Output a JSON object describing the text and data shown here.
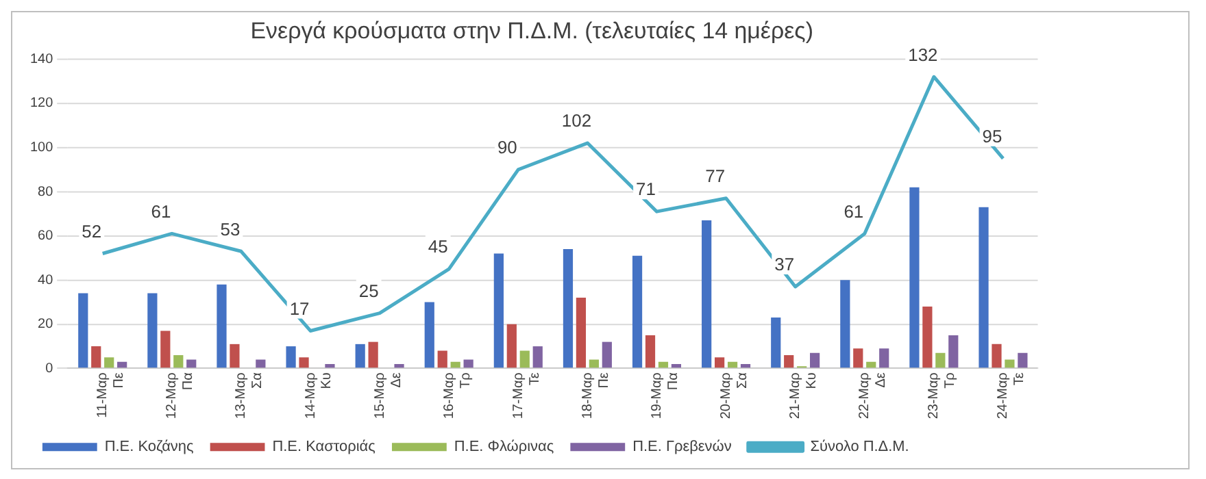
{
  "chart_data": {
    "type": "bar",
    "title": "Ενεργά κρούσματα στην Π.Δ.Μ. (τελευταίες 14 ημέρες)",
    "categories": [
      "11-Μαρ\nΠε",
      "12-Μαρ\nΠα",
      "13-Μαρ\nΣα",
      "14-Μαρ\nΚυ",
      "15-Μαρ\nΔε",
      "16-Μαρ\nΤρ",
      "17-Μαρ\nΤε",
      "18-Μαρ\nΠε",
      "19-Μαρ\nΠα",
      "20-Μαρ\nΣα",
      "21-Μαρ\nΚυ",
      "22-Μαρ\nΔε",
      "23-Μαρ\nΤρ",
      "24-Μαρ\nΤε"
    ],
    "series": [
      {
        "name": "Π.Ε. Κοζάνης",
        "color": "#4472c4",
        "values": [
          34,
          34,
          38,
          10,
          11,
          30,
          52,
          54,
          51,
          67,
          23,
          40,
          82,
          73
        ]
      },
      {
        "name": "Π.Ε. Καστοριάς",
        "color": "#c0504d",
        "values": [
          10,
          17,
          11,
          5,
          12,
          8,
          20,
          32,
          15,
          5,
          6,
          9,
          28,
          11
        ]
      },
      {
        "name": "Π.Ε. Φλώρινας",
        "color": "#9bbb59",
        "values": [
          5,
          6,
          0,
          0,
          0,
          3,
          8,
          4,
          3,
          3,
          1,
          3,
          7,
          4
        ]
      },
      {
        "name": "Π.Ε. Γρεβενών",
        "color": "#8064a2",
        "values": [
          3,
          4,
          4,
          2,
          2,
          4,
          10,
          12,
          2,
          2,
          7,
          9,
          15,
          7
        ]
      },
      {
        "name": "Σύνολο Π.Δ.Μ.",
        "type": "line",
        "color": "#4bacc6",
        "data_labels": true,
        "values": [
          52,
          61,
          53,
          17,
          25,
          45,
          90,
          102,
          71,
          77,
          37,
          61,
          132,
          95
        ]
      }
    ],
    "ylim": [
      0,
      140
    ],
    "yticks": [
      0,
      20,
      40,
      60,
      80,
      100,
      120,
      140
    ],
    "grid": "y",
    "legend": "bottom"
  }
}
